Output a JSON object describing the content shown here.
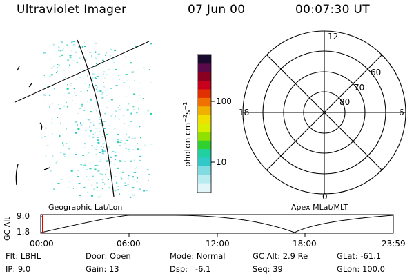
{
  "header": {
    "instrument": "Ultraviolet Imager",
    "date": "07 Jun 00",
    "time": "00:07:30 UT"
  },
  "colorbar": {
    "unit_label": "photon cm",
    "unit_exp1": "−2",
    "unit_mid": "s",
    "unit_exp2": "−1",
    "ticks": [
      "100",
      "10"
    ],
    "colors_top_to_bottom": [
      "#1a0a2e",
      "#5a0a4a",
      "#8a0020",
      "#c8001e",
      "#e03000",
      "#f07000",
      "#f0b000",
      "#f0e000",
      "#d8f000",
      "#90e000",
      "#30d030",
      "#20d0a0",
      "#30c8c8",
      "#80dce0",
      "#b8ecf0",
      "#e0f6f8"
    ]
  },
  "polar_plot": {
    "mlt_labels": {
      "top": "12",
      "left": "18",
      "right": "6",
      "bottom": "0"
    },
    "lat_labels": [
      "60",
      "70",
      "80"
    ]
  },
  "image_panel_label": "Geographic Lat/Lon",
  "polar_panel_label": "Apex MLat/MLT",
  "altitude_strip": {
    "axis_label": "GC Alt",
    "ticks": [
      "9.0",
      "1.8"
    ],
    "time_ticks": [
      "00:00",
      "06:00",
      "12:00",
      "18:00",
      "23:59"
    ],
    "marker_color": "#e00000"
  },
  "info": {
    "flt": "Flt: LBHL",
    "ip": "IP: 9.0",
    "door": "Door: Open",
    "gain": "Gain: 13",
    "mode": "Mode: Normal",
    "dsp": "Dsp:   -6.1",
    "gcalt": "GC Alt: 2.9 Re",
    "seq": "Seq: 39",
    "glat": "GLat: -61.1",
    "glon": "GLon: 100.0"
  }
}
